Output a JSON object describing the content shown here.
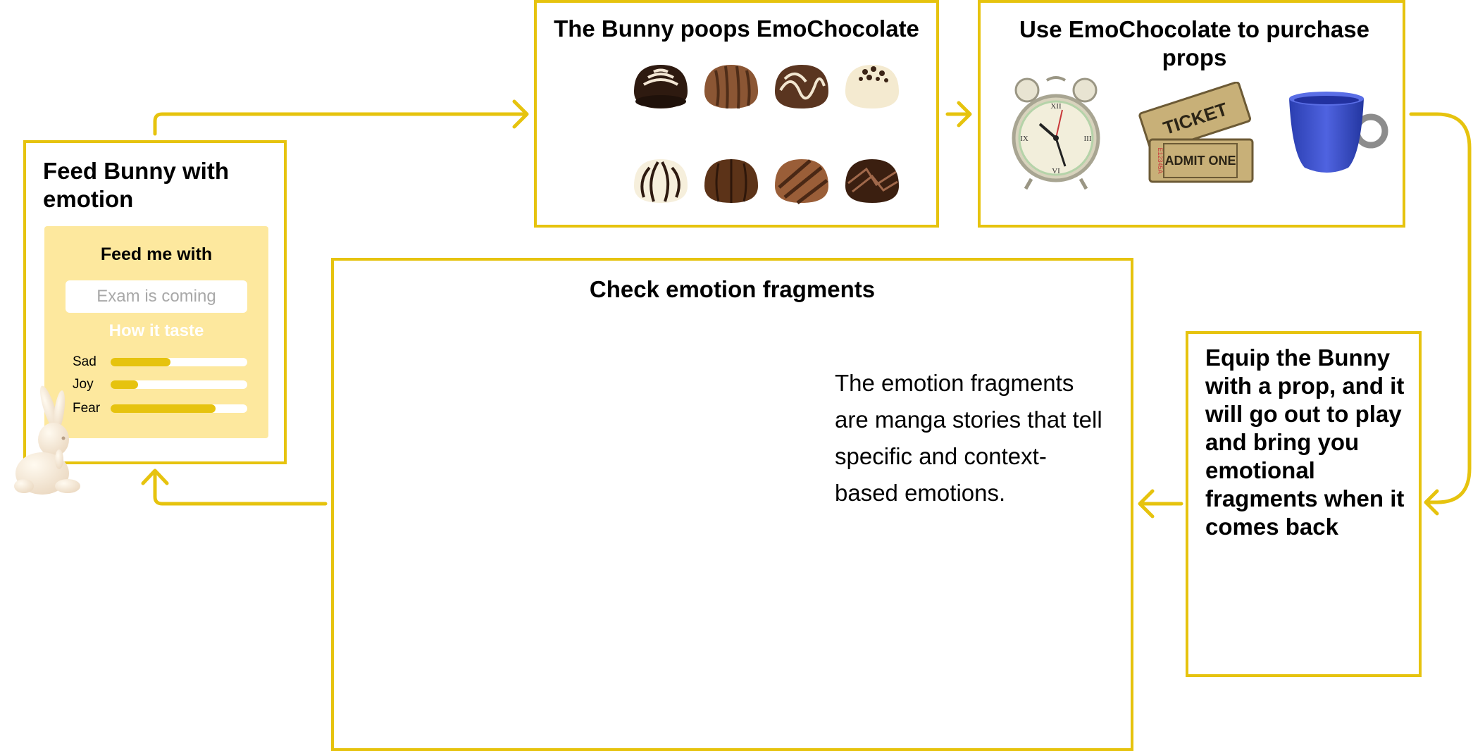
{
  "colors": {
    "accent": "#e6c30e",
    "panel": "#fde89e"
  },
  "feed": {
    "title": "Feed Bunny with emotion",
    "panel_title": "Feed me with",
    "input_placeholder": "Exam is coming",
    "taste_label": "How it taste",
    "emotions": [
      {
        "label": "Sad",
        "level": 0.44
      },
      {
        "label": "Joy",
        "level": 0.2
      },
      {
        "label": "Fear",
        "level": 0.77
      }
    ]
  },
  "poop": {
    "title": "The Bunny poops EmoChocolate",
    "chocolates": [
      "chocolate-swirl-top",
      "chocolate-striped",
      "chocolate-white-drizzle",
      "chocolate-white-sprinkles",
      "chocolate-white-dark-stripes",
      "chocolate-dark-segmented",
      "chocolate-milk-stripes",
      "chocolate-dark-drizzle"
    ]
  },
  "props": {
    "title": "Use EmoChocolate to purchase props",
    "items": [
      {
        "icon": "alarm-clock-icon"
      },
      {
        "icon": "ticket-icon",
        "ticket_top": "TICKET",
        "ticket_bottom": "ADMIT ONE",
        "serial": "E12345A"
      },
      {
        "icon": "blue-cup-icon"
      }
    ]
  },
  "check": {
    "title": "Check emotion fragments",
    "description": "The emotion fragments are manga stories that tell specific and context-based emotions."
  },
  "equip": {
    "title": "Equip the Bunny with a prop, and it will go out to play and bring you emotional fragments when it comes back"
  },
  "decor": {
    "bunny_icon": "bunny-icon"
  }
}
